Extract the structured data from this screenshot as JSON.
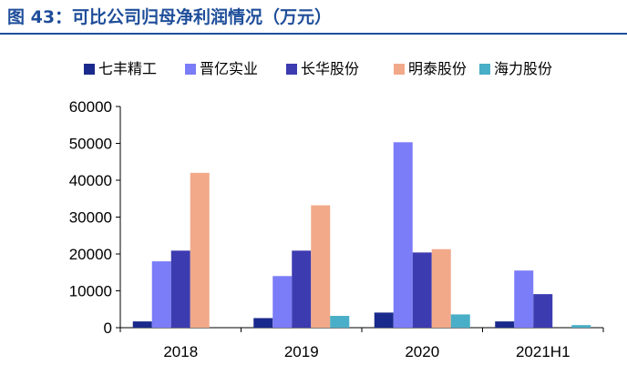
{
  "header": {
    "title": "图 43：可比公司归母净利润情况（万元）"
  },
  "chart_data": {
    "type": "bar",
    "title": "图 43：可比公司归母净利润情况（万元）",
    "categories": [
      "2018",
      "2019",
      "2020",
      "2021H1"
    ],
    "series": [
      {
        "name": "七丰精工",
        "color": "#1a2a8c",
        "values": [
          1700,
          2600,
          4100,
          1700
        ]
      },
      {
        "name": "晋亿实业",
        "color": "#7b7cf7",
        "values": [
          18000,
          14000,
          50300,
          15500
        ]
      },
      {
        "name": "长华股份",
        "color": "#3d3bb0",
        "values": [
          20900,
          20900,
          20400,
          9100
        ]
      },
      {
        "name": "明泰股份",
        "color": "#f1a98a",
        "values": [
          42000,
          33200,
          21300,
          null
        ]
      },
      {
        "name": "海力股份",
        "color": "#49aec7",
        "values": [
          null,
          3200,
          3600,
          700
        ]
      }
    ],
    "yticks": [
      "0",
      "10000",
      "20000",
      "30000",
      "40000",
      "50000",
      "60000"
    ],
    "ylim": [
      0,
      60000
    ],
    "grid": false,
    "legend_position": "top"
  }
}
